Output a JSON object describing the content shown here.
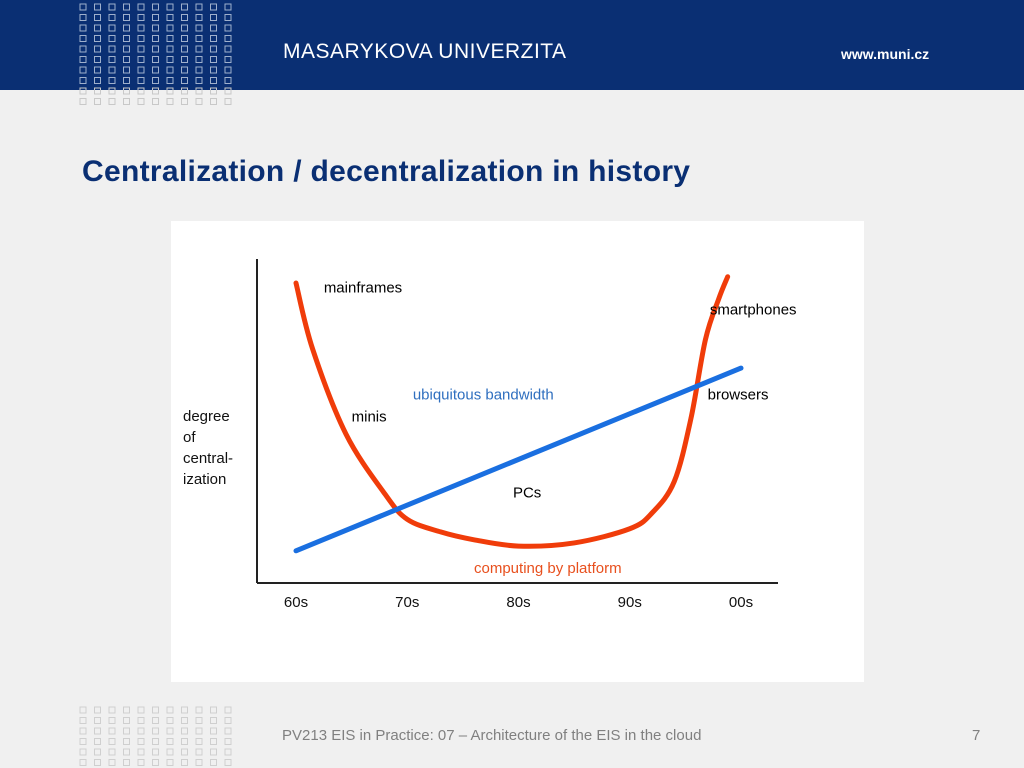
{
  "header": {
    "university": "MASARYKOVA UNIVERZITA",
    "url": "www.muni.cz"
  },
  "slide": {
    "title": "Centralization / decentralization in history"
  },
  "footer": {
    "text": "PV213 EIS in Practice: 07 – Architecture of the EIS in the cloud",
    "page": "7"
  },
  "colors": {
    "header_bg": "#0a2f73",
    "title": "#0a2f73",
    "platform_curve": "#f03c0a",
    "bandwidth_line": "#1a6fe0",
    "bandwidth_label": "#2f6fbf",
    "platform_label": "#e8501e"
  },
  "chart_data": {
    "type": "line",
    "x_ticks": [
      "60s",
      "70s",
      "80s",
      "90s",
      "00s"
    ],
    "ylabel": [
      "degree",
      "of",
      "central-",
      "ization"
    ],
    "series": [
      {
        "name": "computing by platform",
        "x": [
          0.0,
          0.15,
          0.45,
          0.8,
          1.0,
          1.3,
          1.6,
          2.0,
          2.5,
          3.0,
          3.2,
          3.4,
          3.55,
          3.68,
          3.8,
          3.88
        ],
        "y": [
          9.3,
          7.2,
          4.5,
          2.6,
          1.8,
          1.4,
          1.15,
          0.95,
          1.05,
          1.5,
          2.0,
          3.0,
          5.0,
          7.5,
          8.8,
          9.5
        ]
      },
      {
        "name": "ubiquitous bandwidth",
        "x": [
          0.0,
          4.0
        ],
        "y": [
          0.8,
          6.6
        ]
      }
    ],
    "annotations": [
      {
        "text": "mainframes",
        "x": 0.25,
        "y": 9.0,
        "color": "#000000"
      },
      {
        "text": "minis",
        "x": 0.5,
        "y": 4.9,
        "color": "#000000"
      },
      {
        "text": "PCs",
        "x": 1.95,
        "y": 2.5,
        "color": "#000000"
      },
      {
        "text": "ubiquitous bandwidth",
        "x": 1.05,
        "y": 5.6,
        "color": "#2f6fbf"
      },
      {
        "text": "computing by platform",
        "x": 1.6,
        "y": 0.1,
        "color": "#e8501e"
      },
      {
        "text": "browsers",
        "x": 3.7,
        "y": 5.6,
        "color": "#000000"
      },
      {
        "text": "smartphones",
        "x": 3.72,
        "y": 8.3,
        "color": "#000000"
      }
    ],
    "xlim": [
      0,
      4
    ],
    "ylim": [
      0,
      10
    ],
    "grid": false,
    "legend": "none"
  }
}
